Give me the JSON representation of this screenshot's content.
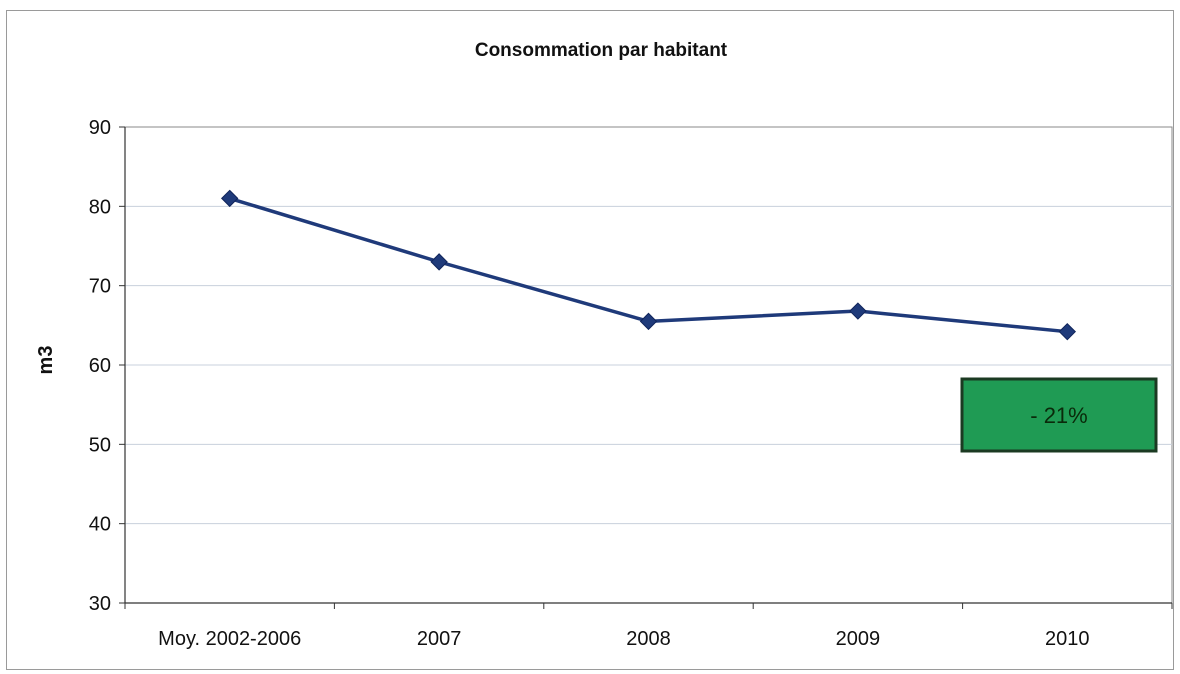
{
  "chart_data": {
    "type": "line",
    "title": "Consommation par habitant",
    "xlabel": "",
    "ylabel": "m3",
    "categories": [
      "Moy. 2002-2006",
      "2007",
      "2008",
      "2009",
      "2010"
    ],
    "series": [
      {
        "values": [
          81,
          73,
          65.5,
          66.8,
          64.2
        ]
      }
    ],
    "ylim": [
      30,
      90
    ],
    "yticks": [
      30,
      40,
      50,
      60,
      70,
      80,
      90
    ],
    "grid": true,
    "legend": "none",
    "annotation": {
      "text": "- 21%",
      "color": "#1f9b54"
    },
    "colors": {
      "line": "#1f3a7a",
      "marker": "#1f3a7a",
      "grid": "#c8d0dc"
    }
  }
}
